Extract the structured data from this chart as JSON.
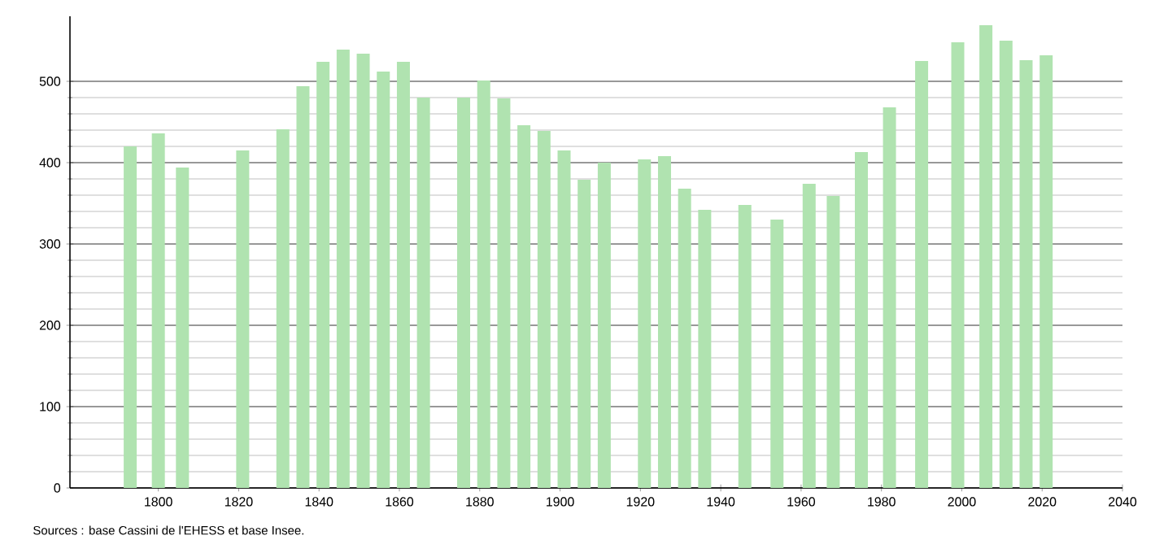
{
  "chart_data": {
    "type": "bar",
    "x": [
      1793,
      1800,
      1806,
      1821,
      1831,
      1836,
      1841,
      1846,
      1851,
      1856,
      1861,
      1866,
      1876,
      1881,
      1886,
      1891,
      1896,
      1901,
      1906,
      1911,
      1921,
      1926,
      1931,
      1936,
      1946,
      1954,
      1962,
      1968,
      1975,
      1982,
      1990,
      1999,
      2006,
      2011,
      2016,
      2021
    ],
    "values": [
      420,
      436,
      394,
      415,
      441,
      494,
      524,
      539,
      534,
      512,
      524,
      480,
      480,
      501,
      479,
      446,
      439,
      415,
      379,
      400,
      404,
      408,
      368,
      342,
      348,
      330,
      374,
      359,
      413,
      468,
      525,
      548,
      569,
      550,
      526,
      532
    ],
    "color": "#b0e3b0",
    "xlim": [
      1778,
      2040
    ],
    "xticks": [
      1800,
      1820,
      1840,
      1860,
      1880,
      1900,
      1920,
      1940,
      1960,
      1980,
      2000,
      2020,
      2040
    ],
    "ylim": [
      0,
      580
    ],
    "yticks": [
      0,
      100,
      200,
      300,
      400,
      500
    ],
    "grid": "y",
    "annotations": [
      "Sources : base Cassini de l'EHESS et base Insee."
    ]
  }
}
